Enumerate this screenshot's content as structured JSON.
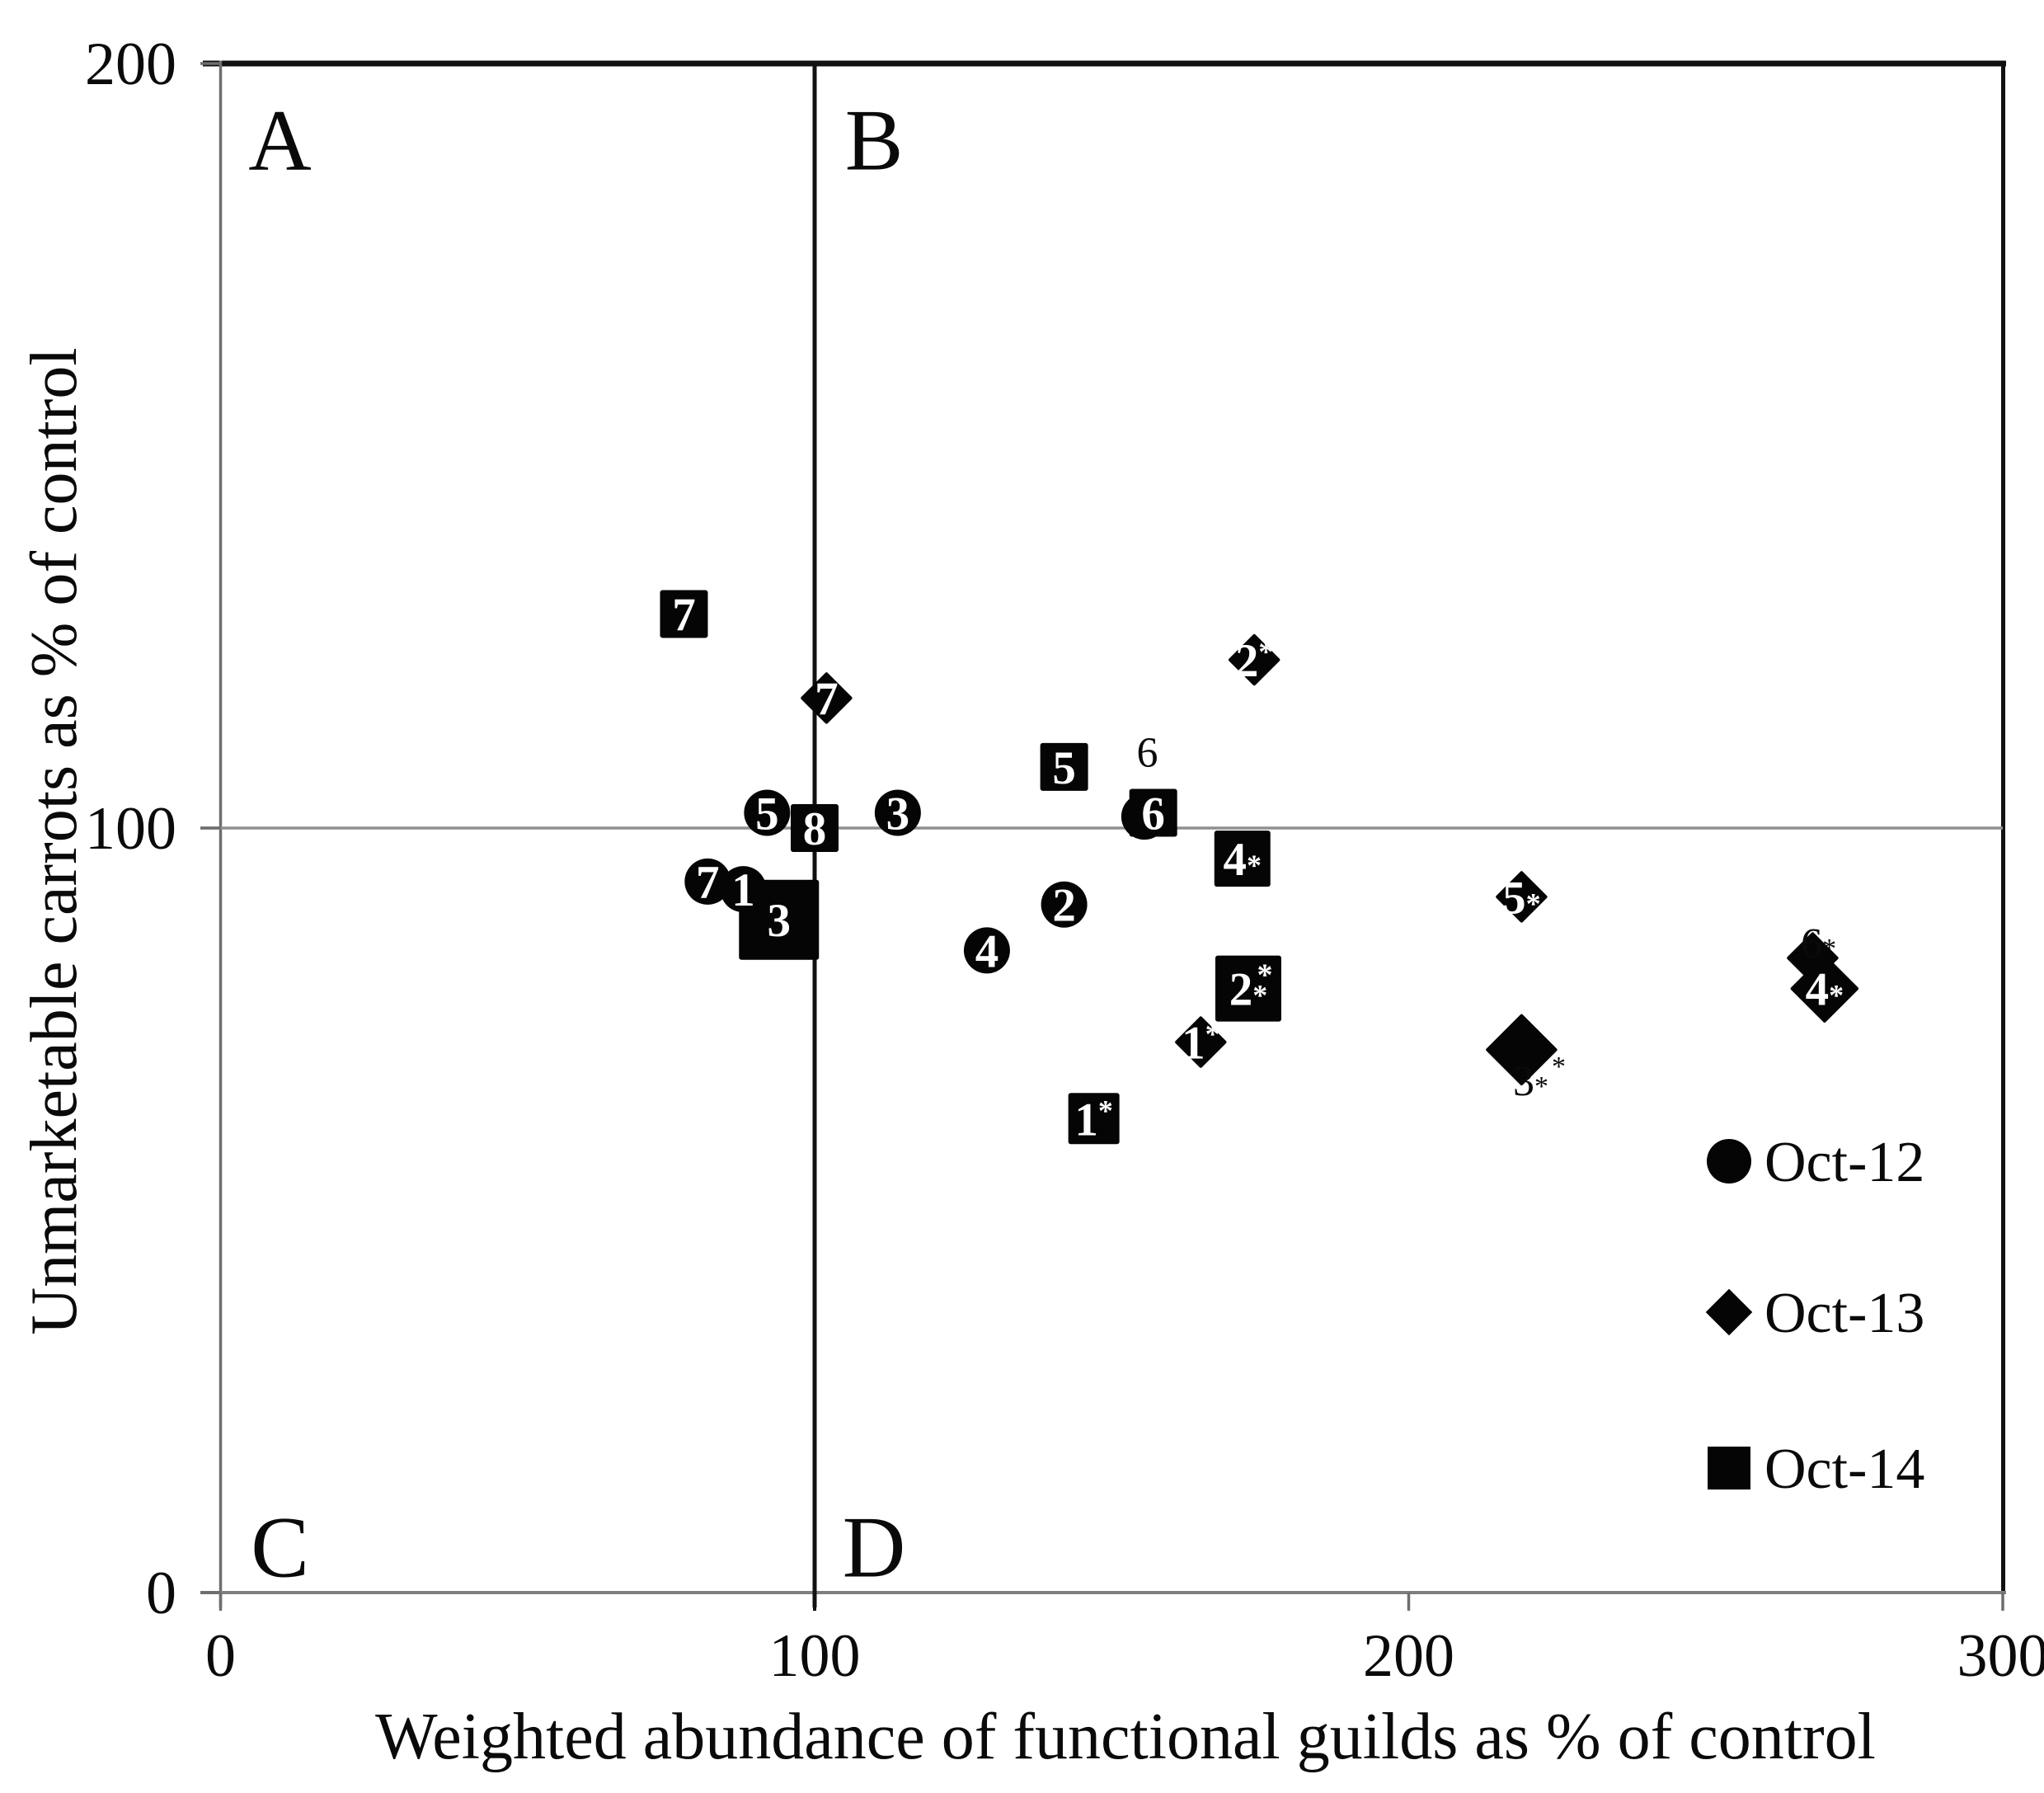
{
  "chart_data": {
    "type": "scatter",
    "title": "",
    "xlabel": "Weighted abundance of functional guilds as % of control",
    "ylabel": "Unmarketable carrots as % of control",
    "xlim": [
      0,
      300
    ],
    "ylim": [
      0,
      200
    ],
    "x_ticks": [
      0,
      100,
      200,
      300
    ],
    "y_ticks": [
      200,
      100,
      0
    ],
    "x_tick_labels": [
      "0",
      "100",
      "200",
      "300"
    ],
    "y_tick_labels": [
      "200",
      "100",
      "0"
    ],
    "grid": "off",
    "reference_lines": {
      "vertical_x": 100,
      "horizontal_y": 100
    },
    "style": {
      "marker_color": "#050505",
      "reference_vline_color": "#111111",
      "reference_hline_color": "#8f8f8f",
      "axis_color": "#6e6e6e",
      "border_color": "#111111",
      "background": "#ffffff"
    },
    "quadrant_labels": [
      {
        "text": "A",
        "x": 10,
        "y": 190
      },
      {
        "text": "B",
        "x": 110,
        "y": 190
      },
      {
        "text": "C",
        "x": 10,
        "y": 6
      },
      {
        "text": "D",
        "x": 110,
        "y": 6
      }
    ],
    "legend": {
      "position": "inside-bottom-right",
      "items": [
        {
          "label": "Oct-12",
          "marker": "circle"
        },
        {
          "label": "Oct-13",
          "marker": "diamond"
        },
        {
          "label": "Oct-14",
          "marker": "square"
        }
      ]
    },
    "series": [
      {
        "name": "Oct-12",
        "marker": "circle",
        "points": [
          {
            "label": "7",
            "x": 82,
            "y": 93,
            "size": 56,
            "star": ""
          },
          {
            "label": "1",
            "x": 88,
            "y": 92,
            "size": 56,
            "star": ""
          },
          {
            "label": "5",
            "x": 92,
            "y": 102,
            "size": 56,
            "star": ""
          },
          {
            "label": "3",
            "x": 114,
            "y": 102,
            "size": 56,
            "star": ""
          },
          {
            "label": "4",
            "x": 129,
            "y": 84,
            "size": 56,
            "star": ""
          },
          {
            "label": "2",
            "x": 142,
            "y": 90,
            "size": 56,
            "star": ""
          },
          {
            "label": "",
            "x": 155.5,
            "y": 101.5,
            "size": 56,
            "star": "",
            "hidden_behind": "Oct-14 square 6",
            "labeled_by_annotation": "6"
          }
        ]
      },
      {
        "name": "Oct-13",
        "marker": "diamond",
        "points": [
          {
            "label": "7",
            "x": 102,
            "y": 117,
            "size": 64,
            "star": ""
          },
          {
            "label": "2",
            "x": 174,
            "y": 122,
            "size": 64,
            "star": "sup"
          },
          {
            "label": "1",
            "x": 165,
            "y": 72,
            "size": 64,
            "star": "sup"
          },
          {
            "label": "5",
            "x": 219,
            "y": 91,
            "size": 64,
            "star": "sub"
          },
          {
            "label": "",
            "x": 219,
            "y": 71,
            "size": 88,
            "star": "",
            "labeled_by_annotation": "3**"
          },
          {
            "label": "",
            "x": 268,
            "y": 83,
            "size": 64,
            "star": "",
            "hidden_behind": "Oct-13 diamond 4",
            "labeled_by_annotation": "6*"
          },
          {
            "label": "4",
            "x": 270,
            "y": 79,
            "size": 84,
            "star": "sub"
          }
        ]
      },
      {
        "name": "Oct-14",
        "marker": "square",
        "points": [
          {
            "label": "3",
            "x": 94,
            "y": 88,
            "size": 97,
            "star": "",
            "z": 1
          },
          {
            "label": "7",
            "x": 78,
            "y": 128,
            "size": 58,
            "star": ""
          },
          {
            "label": "8",
            "x": 100,
            "y": 100,
            "size": 58,
            "star": ""
          },
          {
            "label": "5",
            "x": 142,
            "y": 108,
            "size": 58,
            "star": ""
          },
          {
            "label": "6",
            "x": 157,
            "y": 102,
            "size": 58,
            "star": ""
          },
          {
            "label": "4",
            "x": 172,
            "y": 96,
            "size": 68,
            "star": "sub"
          },
          {
            "label": "2",
            "x": 173,
            "y": 79,
            "size": 80,
            "star": "sub",
            "extra_star": true
          },
          {
            "label": "1",
            "x": 147,
            "y": 62,
            "size": 62,
            "star": "sup"
          }
        ]
      }
    ],
    "annotations": [
      {
        "text": "6",
        "star": "",
        "x": 156,
        "y": 110,
        "refers_to": "Oct-12 point 6"
      },
      {
        "text": "6",
        "star": "sub",
        "x": 269,
        "y": 85,
        "refers_to": "Oct-13 point 6"
      },
      {
        "text": "3",
        "star": "sub+sup",
        "x": 222,
        "y": 67,
        "refers_to": "Oct-13 point 3"
      }
    ]
  }
}
